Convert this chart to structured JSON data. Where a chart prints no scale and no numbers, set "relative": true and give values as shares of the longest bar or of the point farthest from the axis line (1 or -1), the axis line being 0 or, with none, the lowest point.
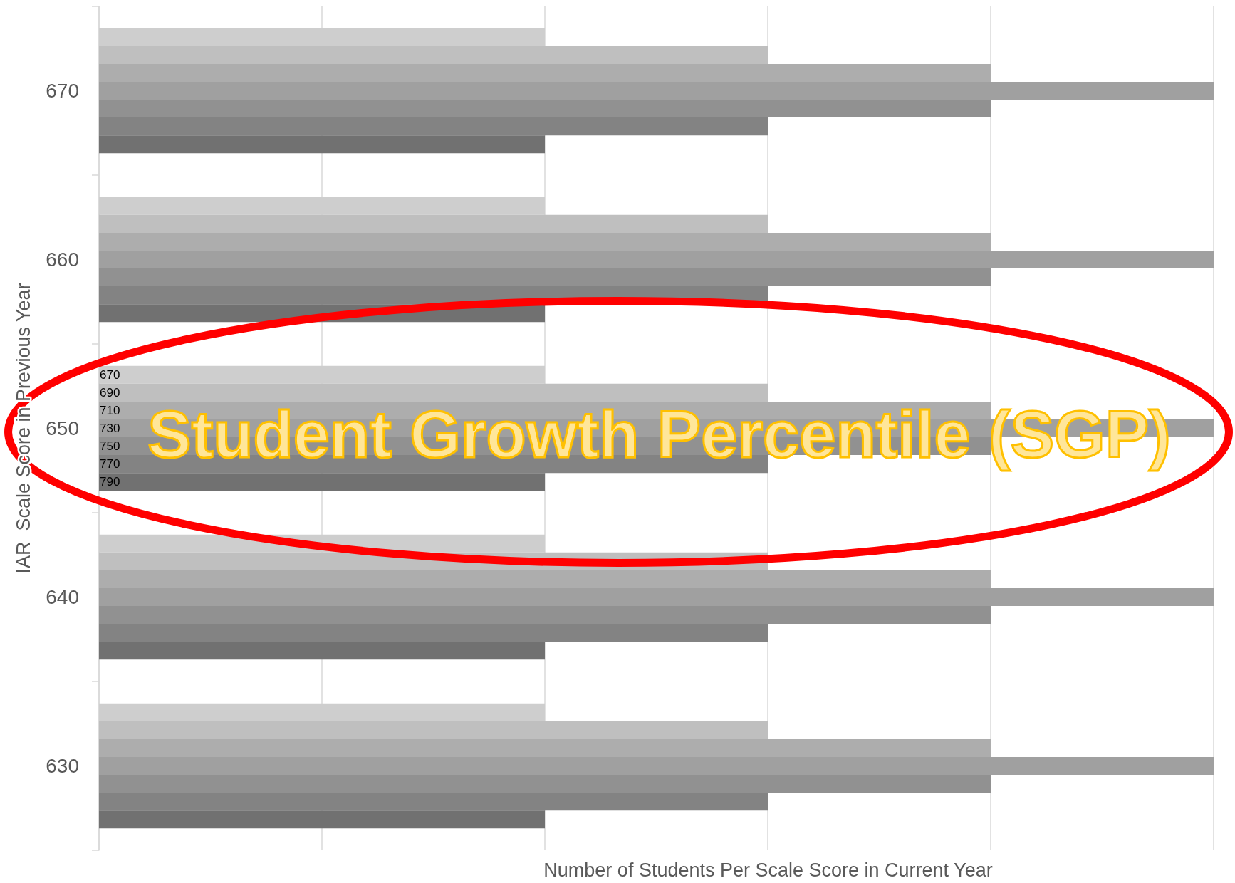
{
  "chart_data": {
    "type": "bar",
    "orientation": "horizontal",
    "relative": true,
    "categories": [
      "670",
      "660",
      "650",
      "640",
      "630"
    ],
    "xlabel": "Number of Students Per Scale Score in Current Year",
    "ylabel": "IAR  Scale Score in Previous Year",
    "annotations": [
      "Student Growth Percentile (SGP)"
    ],
    "grid": "x",
    "legend": false,
    "series": [
      {
        "name": "670",
        "color": "#cecece",
        "values": [
          0.4,
          0.4,
          0.4,
          0.4,
          0.4
        ]
      },
      {
        "name": "690",
        "color": "#bfbfbf",
        "values": [
          0.6,
          0.6,
          0.6,
          0.6,
          0.6
        ]
      },
      {
        "name": "710",
        "color": "#adadad",
        "values": [
          0.8,
          0.8,
          0.8,
          0.8,
          0.8
        ]
      },
      {
        "name": "730",
        "color": "#a0a0a0",
        "values": [
          1,
          1,
          1,
          1,
          1
        ]
      },
      {
        "name": "750",
        "color": "#919191",
        "values": [
          0.8,
          0.8,
          0.8,
          0.8,
          0.8
        ]
      },
      {
        "name": "770",
        "color": "#838383",
        "values": [
          0.6,
          0.6,
          0.6,
          0.6,
          0.6
        ]
      },
      {
        "name": "790",
        "color": "#717171",
        "values": [
          0.4,
          0.4,
          0.4,
          0.4,
          0.4
        ]
      }
    ]
  }
}
